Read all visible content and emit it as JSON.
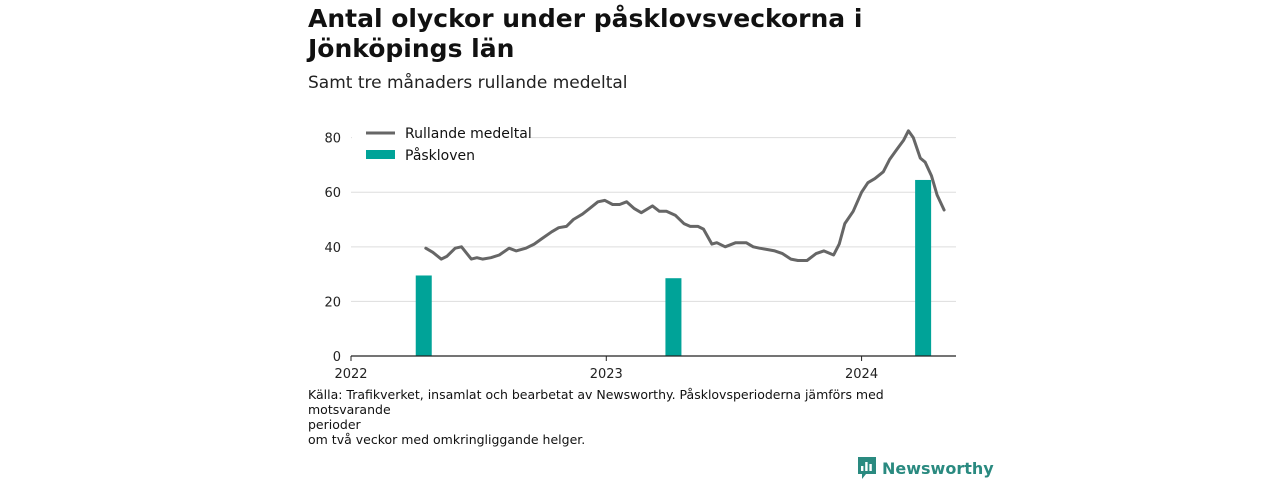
{
  "header": {
    "title": "Antal olyckor under påsklovsveckorna i Jönköpings län",
    "subtitle": "Samt tre månaders rullande medeltal"
  },
  "footer": {
    "source_lines": [
      "Källa: Trafikverket, insamlat och bearbetat av Newsworthy. Påsklovsperioderna jämförs med motsvarande",
      "perioder",
      "om två veckor med omkringliggande helger."
    ],
    "brand": "Newsworthy"
  },
  "colors": {
    "line": "#666666",
    "bar": "#00a398",
    "grid": "#dddddd",
    "brand": "#2a8a80"
  },
  "chart_data": {
    "type": "bar+line",
    "xaxis": {
      "type": "date",
      "range": [
        "2022-01-01",
        "2024-05-15"
      ],
      "ticks": [
        "2022",
        "2023",
        "2024"
      ]
    },
    "yaxis": {
      "range": [
        0,
        85
      ],
      "ticks": [
        0,
        20,
        40,
        60,
        80
      ]
    },
    "grid": true,
    "legend_position": "top-left",
    "series": [
      {
        "name": "Rullande medeltal",
        "type": "line",
        "points": [
          [
            "2022-04-18",
            39.5
          ],
          [
            "2022-04-28",
            38
          ],
          [
            "2022-05-10",
            35.5
          ],
          [
            "2022-05-18",
            36.5
          ],
          [
            "2022-05-30",
            39.5
          ],
          [
            "2022-06-08",
            40
          ],
          [
            "2022-06-22",
            35.5
          ],
          [
            "2022-06-30",
            36
          ],
          [
            "2022-07-08",
            35.5
          ],
          [
            "2022-07-20",
            36
          ],
          [
            "2022-08-01",
            37
          ],
          [
            "2022-08-15",
            39.5
          ],
          [
            "2022-08-25",
            38.5
          ],
          [
            "2022-09-08",
            39.5
          ],
          [
            "2022-09-20",
            41
          ],
          [
            "2022-10-01",
            43
          ],
          [
            "2022-10-15",
            45.5
          ],
          [
            "2022-10-25",
            47
          ],
          [
            "2022-11-05",
            47.5
          ],
          [
            "2022-11-15",
            50
          ],
          [
            "2022-11-28",
            52
          ],
          [
            "2022-12-08",
            54
          ],
          [
            "2022-12-20",
            56.5
          ],
          [
            "2022-12-30",
            57
          ],
          [
            "2023-01-10",
            55.5
          ],
          [
            "2023-01-20",
            55.5
          ],
          [
            "2023-01-30",
            56.5
          ],
          [
            "2023-02-10",
            54
          ],
          [
            "2023-02-20",
            52.5
          ],
          [
            "2023-03-08",
            55
          ],
          [
            "2023-03-18",
            53
          ],
          [
            "2023-03-28",
            53
          ],
          [
            "2023-04-10",
            51.5
          ],
          [
            "2023-04-22",
            48.5
          ],
          [
            "2023-05-01",
            47.5
          ],
          [
            "2023-05-12",
            47.5
          ],
          [
            "2023-05-20",
            46.5
          ],
          [
            "2023-06-01",
            41
          ],
          [
            "2023-06-08",
            41.5
          ],
          [
            "2023-06-20",
            40
          ],
          [
            "2023-07-05",
            41.5
          ],
          [
            "2023-07-20",
            41.5
          ],
          [
            "2023-07-30",
            40
          ],
          [
            "2023-08-08",
            39.5
          ],
          [
            "2023-08-20",
            39
          ],
          [
            "2023-08-30",
            38.5
          ],
          [
            "2023-09-10",
            37.5
          ],
          [
            "2023-09-22",
            35.5
          ],
          [
            "2023-10-02",
            35
          ],
          [
            "2023-10-15",
            35
          ],
          [
            "2023-10-28",
            37.5
          ],
          [
            "2023-11-08",
            38.5
          ],
          [
            "2023-11-22",
            37
          ],
          [
            "2023-11-30",
            41
          ],
          [
            "2023-12-08",
            48.5
          ],
          [
            "2023-12-20",
            53
          ],
          [
            "2024-01-01",
            60
          ],
          [
            "2024-01-10",
            63.5
          ],
          [
            "2024-01-20",
            65
          ],
          [
            "2024-02-01",
            67.5
          ],
          [
            "2024-02-10",
            72
          ],
          [
            "2024-02-20",
            75.5
          ],
          [
            "2024-03-01",
            79
          ],
          [
            "2024-03-08",
            82.5
          ],
          [
            "2024-03-15",
            80
          ],
          [
            "2024-03-25",
            72.5
          ],
          [
            "2024-04-01",
            71
          ],
          [
            "2024-04-10",
            66
          ],
          [
            "2024-04-18",
            59
          ],
          [
            "2024-04-28",
            53.5
          ]
        ]
      },
      {
        "name": "Påskloven",
        "type": "bar",
        "points": [
          [
            "2022-04-15",
            29.5
          ],
          [
            "2023-04-07",
            28.5
          ],
          [
            "2024-03-29",
            64.5
          ]
        ]
      }
    ]
  }
}
